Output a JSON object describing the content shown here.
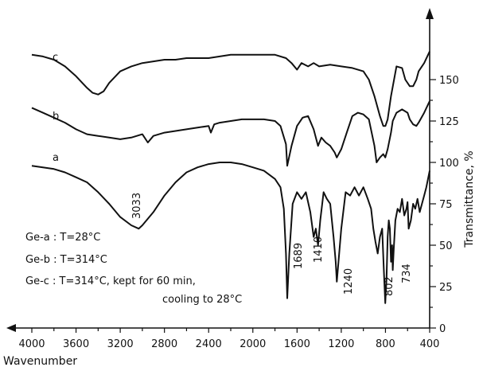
{
  "chart_data": {
    "type": "line",
    "xlabel": "Wavenumber",
    "ylabel": "Transmittance, %",
    "xlim": [
      4000,
      400
    ],
    "ylim": [
      0,
      175
    ],
    "x_ticks": [
      4000,
      3600,
      3200,
      2800,
      2400,
      2000,
      1600,
      1200,
      800,
      400
    ],
    "y_ticks": [
      0,
      25,
      50,
      75,
      100,
      125,
      150
    ],
    "x_reversed": true,
    "grid": false,
    "series": [
      {
        "name": "c",
        "x": [
          4000,
          3900,
          3800,
          3700,
          3600,
          3500,
          3450,
          3400,
          3350,
          3300,
          3200,
          3100,
          3000,
          2900,
          2800,
          2700,
          2600,
          2400,
          2300,
          2200,
          2000,
          1900,
          1800,
          1700,
          1650,
          1600,
          1560,
          1500,
          1450,
          1400,
          1300,
          1200,
          1100,
          1000,
          950,
          900,
          850,
          820,
          800,
          780,
          750,
          700,
          650,
          620,
          580,
          550,
          520,
          500,
          450,
          400
        ],
        "values": [
          165,
          164,
          162,
          158,
          152,
          145,
          142,
          141,
          143,
          148,
          155,
          158,
          160,
          161,
          162,
          162,
          163,
          163,
          164,
          165,
          165,
          165,
          165,
          163,
          160,
          156,
          160,
          158,
          160,
          158,
          159,
          158,
          157,
          155,
          150,
          140,
          128,
          122,
          122,
          126,
          140,
          158,
          157,
          150,
          146,
          146,
          150,
          155,
          160,
          167
        ]
      },
      {
        "name": "b",
        "x": [
          4000,
          3900,
          3800,
          3700,
          3600,
          3500,
          3400,
          3300,
          3200,
          3100,
          3000,
          2950,
          2900,
          2800,
          2700,
          2600,
          2500,
          2400,
          2380,
          2350,
          2300,
          2200,
          2100,
          2000,
          1900,
          1800,
          1750,
          1700,
          1689,
          1650,
          1600,
          1550,
          1500,
          1450,
          1410,
          1380,
          1340,
          1300,
          1260,
          1240,
          1200,
          1150,
          1100,
          1050,
          1000,
          950,
          900,
          880,
          850,
          820,
          802,
          780,
          750,
          734,
          700,
          650,
          600,
          580,
          550,
          520,
          500,
          450,
          400
        ],
        "values": [
          133,
          130,
          127,
          124,
          120,
          117,
          116,
          115,
          114,
          115,
          117,
          112,
          116,
          118,
          119,
          120,
          121,
          122,
          118,
          123,
          124,
          125,
          126,
          126,
          126,
          125,
          122,
          111,
          98,
          110,
          122,
          127,
          128,
          120,
          110,
          115,
          112,
          110,
          106,
          103,
          108,
          118,
          128,
          130,
          129,
          126,
          110,
          100,
          103,
          105,
          103,
          108,
          118,
          125,
          130,
          132,
          130,
          126,
          123,
          122,
          124,
          130,
          137
        ]
      },
      {
        "name": "a",
        "x": [
          4000,
          3900,
          3800,
          3700,
          3600,
          3500,
          3400,
          3300,
          3200,
          3100,
          3033,
          3000,
          2900,
          2800,
          2700,
          2600,
          2500,
          2400,
          2300,
          2200,
          2100,
          2000,
          1900,
          1800,
          1750,
          1720,
          1700,
          1689,
          1670,
          1640,
          1600,
          1560,
          1520,
          1480,
          1450,
          1430,
          1410,
          1390,
          1360,
          1330,
          1300,
          1270,
          1250,
          1240,
          1225,
          1200,
          1160,
          1120,
          1080,
          1040,
          1000,
          960,
          930,
          910,
          890,
          870,
          850,
          830,
          815,
          802,
          790,
          780,
          770,
          760,
          750,
          740,
          734,
          725,
          710,
          690,
          670,
          650,
          630,
          610,
          600,
          590,
          570,
          550,
          530,
          510,
          490,
          470,
          450,
          430,
          400
        ],
        "values": [
          98,
          97,
          96,
          94,
          91,
          88,
          82,
          75,
          67,
          62,
          60,
          62,
          70,
          80,
          88,
          94,
          97,
          99,
          100,
          100,
          99,
          97,
          95,
          90,
          85,
          72,
          45,
          18,
          45,
          75,
          82,
          78,
          82,
          70,
          55,
          60,
          50,
          65,
          82,
          78,
          75,
          55,
          40,
          28,
          40,
          60,
          82,
          80,
          85,
          80,
          85,
          78,
          72,
          60,
          52,
          45,
          55,
          60,
          35,
          15,
          30,
          55,
          65,
          60,
          40,
          50,
          35,
          48,
          65,
          72,
          70,
          78,
          68,
          72,
          76,
          60,
          65,
          75,
          72,
          78,
          70,
          75,
          80,
          85,
          95
        ]
      }
    ],
    "series_labels": [
      "c",
      "b",
      "a"
    ],
    "annotations": [
      "3033",
      "1689",
      "1410",
      "1240",
      "802",
      "734"
    ],
    "legend_lines": [
      "Ge-a : T=28°C",
      "Ge-b : T=314°C",
      "Ge-c : T=314°C, kept for 60 min,",
      "cooling to 28°C"
    ]
  }
}
